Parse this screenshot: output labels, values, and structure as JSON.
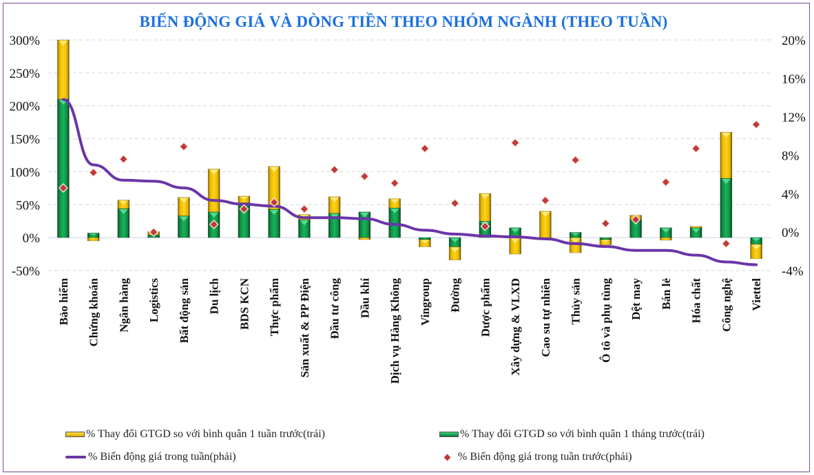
{
  "chart_data": {
    "type": "bar",
    "title": "BIẾN ĐỘNG GIÁ VÀ DÒNG TIỀN THEO NHÓM NGÀNH (THEO TUẦN)",
    "xlabel": "",
    "ylabel_left": "",
    "ylabel_right": "",
    "y_left": {
      "lim": [
        -50,
        300
      ],
      "ticks": [
        -50,
        0,
        50,
        100,
        150,
        200,
        250,
        300
      ],
      "tick_labels": [
        "-50%",
        "0%",
        "50%",
        "100%",
        "150%",
        "200%",
        "250%",
        "300%"
      ]
    },
    "y_right": {
      "lim": [
        -4,
        20
      ],
      "ticks": [
        -4,
        0,
        4,
        8,
        12,
        16,
        20
      ],
      "tick_labels": [
        "-4%",
        "0%",
        "4%",
        "8%",
        "12%",
        "16%",
        "20%"
      ]
    },
    "grid": true,
    "legend_position": "bottom",
    "categories": [
      "Bảo hiểm",
      "Chứng khoán",
      "Ngân hàng",
      "Logistics",
      "Bất động sản",
      "Du lịch",
      "BDS KCN",
      "Thực phẩm",
      "Sản xuất & PP Điện",
      "Đầu tư công",
      "Dầu khí",
      "Dịch vụ Hàng Không",
      "Vingroup",
      "Đường",
      "Dược phẩm",
      "Xây dựng & VLXD",
      "Cao su tự nhiên",
      "Thủy sản",
      "Ô tô và phụ tùng",
      "Dệt may",
      "Bán lẻ",
      "Hóa chất",
      "Công nghệ",
      "Viettel"
    ],
    "series": [
      {
        "name": "% Thay đổi GTGD so với bình quân 1 tuần trước(trái)",
        "kind": "bar-stacked",
        "axis": "left",
        "color": "#f2c200",
        "values": [
          90,
          -5,
          13,
          5,
          28,
          65,
          10,
          65,
          8,
          25,
          -3,
          14,
          -11,
          -20,
          42,
          -25,
          40,
          -23,
          -8,
          6,
          -4,
          2,
          70,
          -22
        ]
      },
      {
        "name": "% Thay đổi GTGD so với bình quân 1 tháng trước(trái)",
        "kind": "bar-stacked",
        "axis": "left",
        "color": "#12a050",
        "values": [
          210,
          7,
          44,
          4,
          33,
          39,
          53,
          43,
          27,
          37,
          39,
          45,
          -3,
          -14,
          25,
          15,
          0,
          8,
          -3,
          28,
          15,
          15,
          90,
          -10
        ]
      },
      {
        "name": "% Biến động giá trong tuần(phải)",
        "kind": "line",
        "axis": "right",
        "color": "#6b35a8",
        "values": [
          13.8,
          7.0,
          5.4,
          5.3,
          4.6,
          3.3,
          2.9,
          2.7,
          1.5,
          1.5,
          1.4,
          0.8,
          0.2,
          -0.2,
          -0.4,
          -0.5,
          -0.7,
          -1.2,
          -1.5,
          -1.9,
          -1.9,
          -2.4,
          -3.1,
          -3.4
        ]
      },
      {
        "name": "% Biến động giá trong tuần trước(phải)",
        "kind": "scatter",
        "axis": "right",
        "color": "#c0393b",
        "values": [
          4.6,
          6.2,
          7.6,
          0.0,
          8.9,
          0.8,
          2.4,
          3.1,
          2.4,
          6.5,
          5.8,
          5.1,
          8.7,
          3.0,
          0.6,
          9.3,
          3.3,
          7.5,
          0.9,
          1.3,
          5.2,
          8.7,
          -1.2,
          11.2
        ]
      }
    ]
  },
  "legend": {
    "items": [
      {
        "label": "% Thay đổi GTGD so với bình quân 1 tuần trước(trái)",
        "icon": "yellow-bar-swatch"
      },
      {
        "label": "% Thay đổi GTGD so với bình quân 1 tháng trước(trái)",
        "icon": "green-bar-swatch"
      },
      {
        "label": "% Biến động giá trong tuần(phải)",
        "icon": "purple-line-swatch"
      },
      {
        "label": "% Biến động giá trong tuần trước(phải)",
        "icon": "red-diamond-swatch"
      }
    ]
  }
}
